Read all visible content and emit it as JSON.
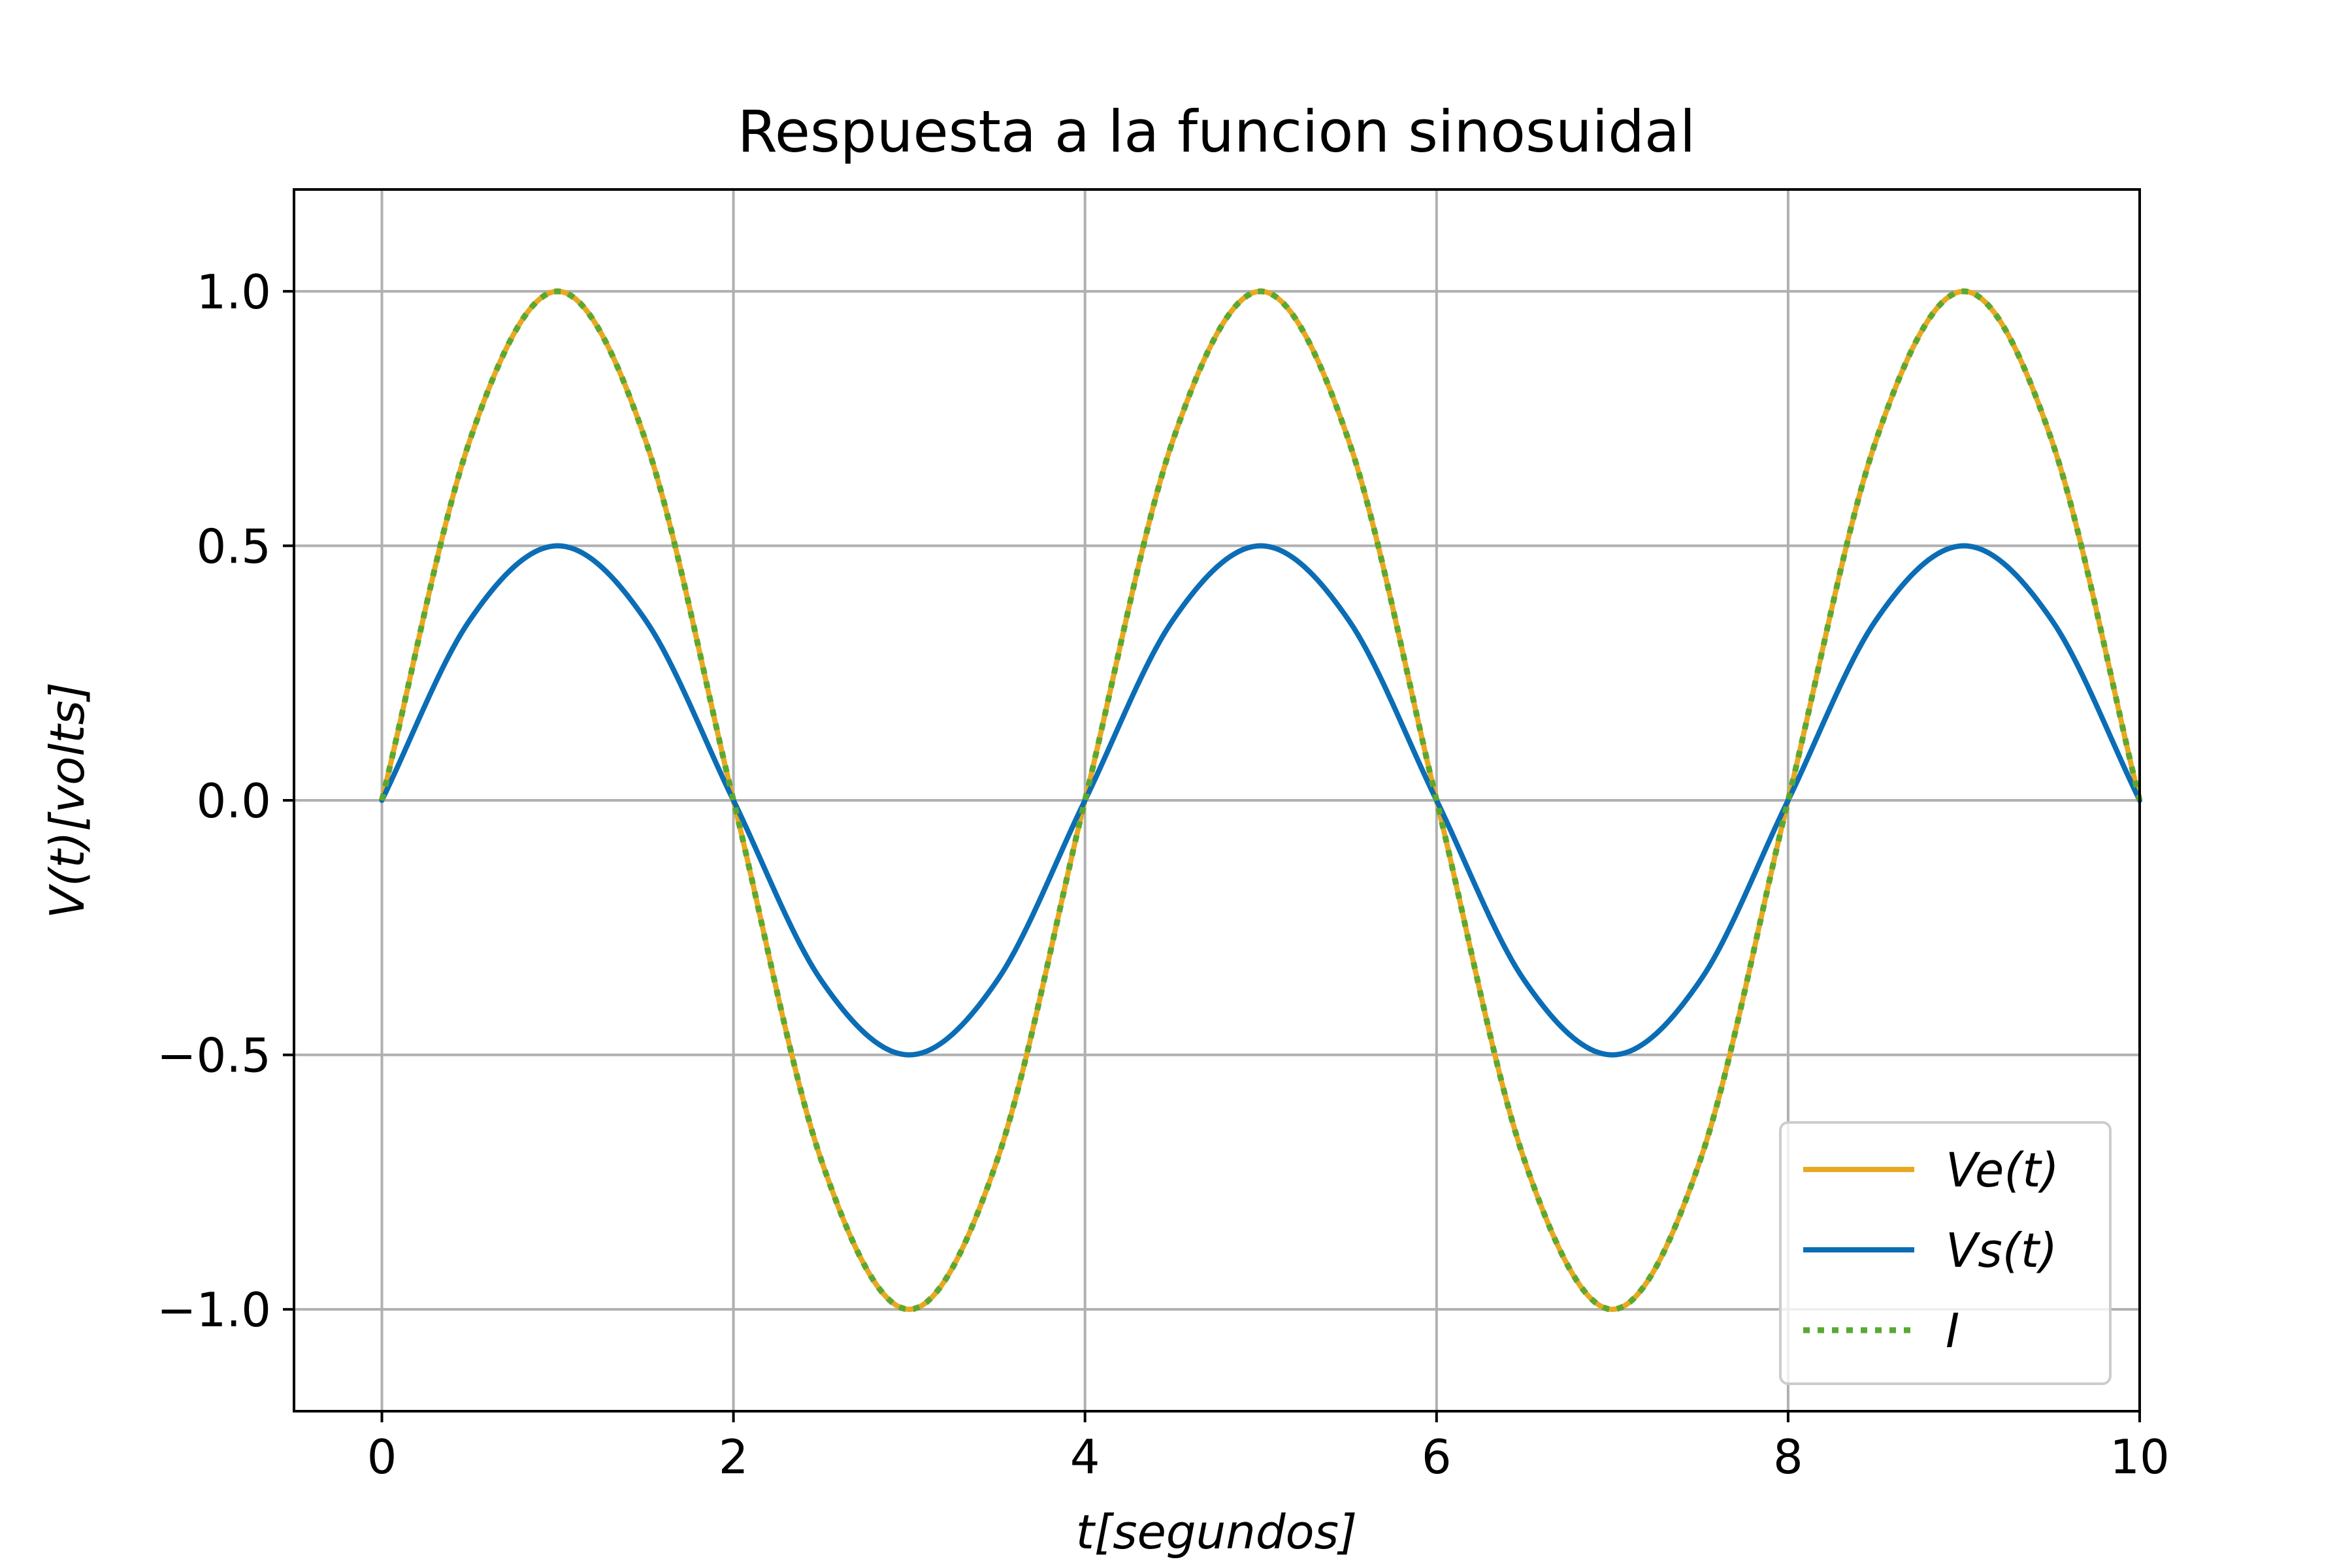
{
  "chart_data": {
    "type": "line",
    "title": "Respuesta a la funcion sinosuidal",
    "xlabel": "t[segundos]",
    "ylabel": "V(t)[volts]",
    "xlim": [
      -0.5,
      10
    ],
    "ylim": [
      -1.2,
      1.2
    ],
    "xticks": [
      0,
      2,
      4,
      6,
      8,
      10
    ],
    "xtick_labels": [
      "0",
      "2",
      "4",
      "6",
      "8",
      "10"
    ],
    "yticks": [
      -1.0,
      -0.5,
      0.0,
      0.5,
      1.0
    ],
    "ytick_labels": [
      "−1.0",
      "−0.5",
      "0.0",
      "0.5",
      "1.0"
    ],
    "grid": true,
    "legend_position": "lower-right",
    "x": [
      0,
      0.5,
      1,
      1.5,
      2,
      2.5,
      3,
      3.5,
      4,
      4.5,
      5,
      5.5,
      6,
      6.5,
      7,
      7.5,
      8,
      8.5,
      9,
      9.5,
      10
    ],
    "series": [
      {
        "name": "Ve(t)",
        "color": "#e8a820",
        "style": "solid",
        "values": [
          0,
          0.707,
          1,
          0.707,
          0,
          -0.707,
          -1,
          -0.707,
          0,
          0.707,
          1,
          0.707,
          0,
          -0.707,
          -1,
          -0.707,
          0,
          0.707,
          1,
          0.707,
          0
        ]
      },
      {
        "name": "Vs(t)",
        "color": "#0b6db5",
        "style": "solid",
        "values": [
          0,
          0.354,
          0.5,
          0.354,
          0,
          -0.354,
          -0.5,
          -0.354,
          0,
          0.354,
          0.5,
          0.354,
          0,
          -0.354,
          -0.5,
          -0.354,
          0,
          0.354,
          0.5,
          0.354,
          0
        ]
      },
      {
        "name": "I",
        "color": "#5aa832",
        "style": "dotted",
        "values": [
          0,
          0.707,
          1,
          0.707,
          0,
          -0.707,
          -1,
          -0.707,
          0,
          0.707,
          1,
          0.707,
          0,
          -0.707,
          -1,
          -0.707,
          0,
          0.707,
          1,
          0.707,
          0
        ]
      }
    ]
  }
}
